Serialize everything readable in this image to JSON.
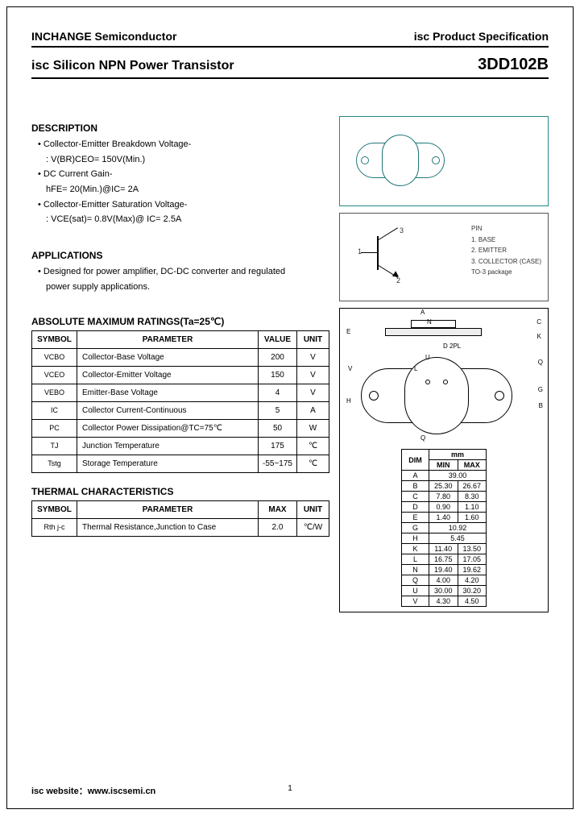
{
  "header": {
    "company": "INCHANGE Semiconductor",
    "spec_label": "isc Product Specification"
  },
  "title": {
    "product_type": "isc Silicon NPN Power Transistor",
    "part_number": "3DD102B"
  },
  "description": {
    "heading": "DESCRIPTION",
    "items": [
      {
        "text": "Collector-Emitter Breakdown Voltage-",
        "sub": ": V(BR)CEO= 150V(Min.)"
      },
      {
        "text": "DC Current Gain-",
        "sub": "hFE= 20(Min.)@IC= 2A"
      },
      {
        "text": "Collector-Emitter Saturation Voltage-",
        "sub": ": VCE(sat)= 0.8V(Max)@ IC= 2.5A"
      }
    ]
  },
  "applications": {
    "heading": "APPLICATIONS",
    "line1": "Designed for power amplifier, DC-DC converter and regulated",
    "line2": "power supply applications."
  },
  "ratings": {
    "heading": "ABSOLUTE MAXIMUM RATINGS(Ta=25℃)",
    "col_symbol": "SYMBOL",
    "col_param": "PARAMETER",
    "col_value": "VALUE",
    "col_unit": "UNIT",
    "rows": [
      {
        "sym": "VCBO",
        "param": "Collector-Base Voltage",
        "value": "200",
        "unit": "V"
      },
      {
        "sym": "VCEO",
        "param": "Collector-Emitter Voltage",
        "value": "150",
        "unit": "V"
      },
      {
        "sym": "VEBO",
        "param": "Emitter-Base Voltage",
        "value": "4",
        "unit": "V"
      },
      {
        "sym": "IC",
        "param": "Collector Current-Continuous",
        "value": "5",
        "unit": "A"
      },
      {
        "sym": "PC",
        "param": "Collector Power Dissipation@TC=75℃",
        "value": "50",
        "unit": "W"
      },
      {
        "sym": "TJ",
        "param": "Junction Temperature",
        "value": "175",
        "unit": "℃"
      },
      {
        "sym": "Tstg",
        "param": "Storage Temperature",
        "value": "-55~175",
        "unit": "℃"
      }
    ]
  },
  "thermal": {
    "heading": "THERMAL CHARACTERISTICS",
    "col_symbol": "SYMBOL",
    "col_param": "PARAMETER",
    "col_max": "MAX",
    "col_unit": "UNIT",
    "rows": [
      {
        "sym": "Rth j-c",
        "param": "Thermal Resistance,Junction to Case",
        "max": "2.0",
        "unit": "℃/W"
      }
    ]
  },
  "pin_legend": {
    "title": "PIN",
    "p1": "1. BASE",
    "p2": "2. EMITTER",
    "p3": "3. COLLECTOR (CASE)",
    "pkg": "TO-3 package"
  },
  "dimensions": {
    "unit_header": "mm",
    "col_dim": "DIM",
    "col_min": "MIN",
    "col_max": "MAX",
    "rows": [
      {
        "d": "A",
        "min": "39.00",
        "max": "",
        "span": true
      },
      {
        "d": "B",
        "min": "25.30",
        "max": "26.67"
      },
      {
        "d": "C",
        "min": "7.80",
        "max": "8.30"
      },
      {
        "d": "D",
        "min": "0.90",
        "max": "1.10"
      },
      {
        "d": "E",
        "min": "1.40",
        "max": "1.60"
      },
      {
        "d": "G",
        "min": "10.92",
        "max": "",
        "span": true
      },
      {
        "d": "H",
        "min": "5.45",
        "max": "",
        "span": true
      },
      {
        "d": "K",
        "min": "11.40",
        "max": "13.50"
      },
      {
        "d": "L",
        "min": "16.75",
        "max": "17.05"
      },
      {
        "d": "N",
        "min": "19.40",
        "max": "19.62"
      },
      {
        "d": "Q",
        "min": "4.00",
        "max": "4.20"
      },
      {
        "d": "U",
        "min": "30.00",
        "max": "30.20"
      },
      {
        "d": "V",
        "min": "4.30",
        "max": "4.50"
      }
    ]
  },
  "dim_labels": [
    "A",
    "N",
    "C",
    "E",
    "K",
    "D 2PL",
    "U",
    "L",
    "V",
    "Q",
    "G",
    "B",
    "H",
    "Q"
  ],
  "colors": {
    "teal": "#278080",
    "border": "#000000",
    "bg": "#ffffff"
  },
  "footer": {
    "website_label": "isc website：",
    "website": "www.iscsemi.cn",
    "page": "1"
  }
}
